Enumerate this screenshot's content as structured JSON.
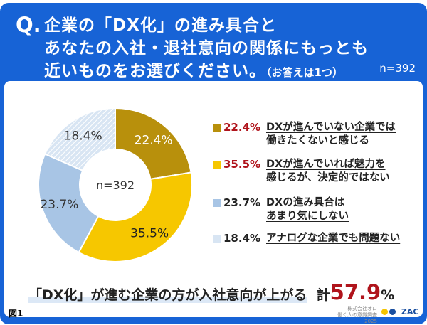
{
  "header": {
    "q": "Q.",
    "line1": "企業の「DX化」の進み具合と",
    "line2": "あなたの入社・退社意向の関係にもっとも",
    "line3": "近いものをお選びください。",
    "note": "（お答えは1つ）",
    "n": "n=392"
  },
  "chart_data": {
    "type": "pie",
    "donut": true,
    "center_label": "n=392",
    "start": "top",
    "direction": "clockwise",
    "slices": [
      {
        "label": "DXが進んでいない企業では働きたくないと感じる",
        "line1": "DXが進んでいない企業では",
        "line2": "働きたくないと感じる",
        "value": 22.4,
        "display": "22.4%",
        "color": "#b8900c",
        "highlight": true
      },
      {
        "label": "DXが進んでいれば魅力を感じるが、決定的ではない",
        "line1": "DXが進んでいれば魅力を",
        "line2": "感じるが、決定的ではない",
        "value": 35.5,
        "display": "35.5%",
        "color": "#f6c700",
        "highlight": true
      },
      {
        "label": "DXの進み具合はあまり気にしない",
        "line1": "DXの進み具合は",
        "line2": "あまり気にしない",
        "value": 23.7,
        "display": "23.7%",
        "color": "#a8c5e5",
        "highlight": false
      },
      {
        "label": "アナログな企業でも問題ない",
        "line1": "アナログな企業でも問題ない",
        "line2": "",
        "value": 18.4,
        "display": "18.4%",
        "color": "#d8e5f3",
        "highlight": false,
        "hatched": true
      }
    ]
  },
  "conclusion": {
    "text": "「DX化」が進む企業の方が入社意向が上がる",
    "total_prefix": "計",
    "total": "57.9",
    "unit": "%"
  },
  "footer": {
    "fig": "図1",
    "credit1": "株式会社オロ",
    "credit2": "働く人の意識調査2025",
    "logo": "ZAC"
  }
}
